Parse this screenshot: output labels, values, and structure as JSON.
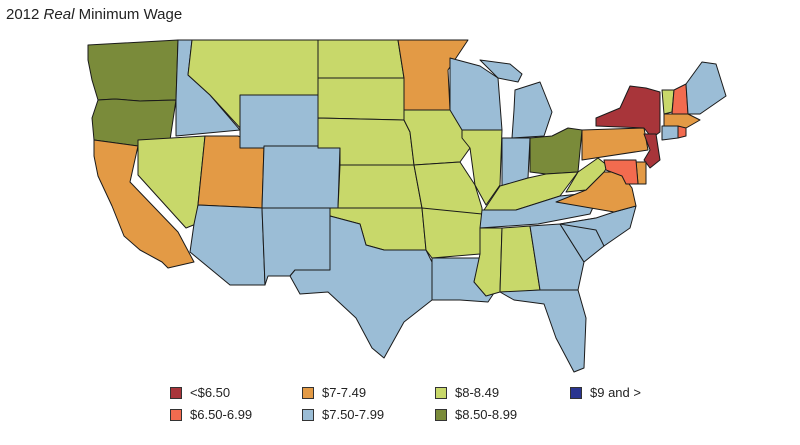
{
  "title": {
    "year": "2012",
    "italic": "Real",
    "rest": "Minimum Wage"
  },
  "legend": [
    {
      "id": "lt650",
      "label": "<$6.50",
      "color": "#a8353a"
    },
    {
      "id": "r650_699",
      "label": "$6.50-6.99",
      "color": "#f26b4f"
    },
    {
      "id": "r7_749",
      "label": "$7-7.49",
      "color": "#e39a45"
    },
    {
      "id": "r750_799",
      "label": "$7.50-7.99",
      "color": "#9bbdd6"
    },
    {
      "id": "r8_849",
      "label": "$8-8.49",
      "color": "#c8d86a"
    },
    {
      "id": "r850_899",
      "label": "$8.50-8.99",
      "color": "#7a8b3a"
    },
    {
      "id": "gte9",
      "label": "$9 and >",
      "color": "#2a3590"
    }
  ],
  "states": [
    {
      "id": "WA",
      "bin": "r850_899"
    },
    {
      "id": "OR",
      "bin": "r850_899"
    },
    {
      "id": "CA",
      "bin": "r7_749"
    },
    {
      "id": "ID",
      "bin": "r750_799"
    },
    {
      "id": "NV",
      "bin": "r8_849"
    },
    {
      "id": "UT",
      "bin": "r7_749"
    },
    {
      "id": "AZ",
      "bin": "r750_799"
    },
    {
      "id": "MT",
      "bin": "r8_849"
    },
    {
      "id": "WY",
      "bin": "r750_799"
    },
    {
      "id": "CO",
      "bin": "r750_799"
    },
    {
      "id": "NM",
      "bin": "r750_799"
    },
    {
      "id": "ND",
      "bin": "r8_849"
    },
    {
      "id": "SD",
      "bin": "r8_849"
    },
    {
      "id": "NE",
      "bin": "r8_849"
    },
    {
      "id": "KS",
      "bin": "r8_849"
    },
    {
      "id": "OK",
      "bin": "r8_849"
    },
    {
      "id": "TX",
      "bin": "r750_799"
    },
    {
      "id": "MN",
      "bin": "r7_749"
    },
    {
      "id": "IA",
      "bin": "r8_849"
    },
    {
      "id": "MO",
      "bin": "r8_849"
    },
    {
      "id": "AR",
      "bin": "r8_849"
    },
    {
      "id": "LA",
      "bin": "r750_799"
    },
    {
      "id": "WI",
      "bin": "r750_799"
    },
    {
      "id": "IL",
      "bin": "r8_849"
    },
    {
      "id": "MI",
      "bin": "r750_799"
    },
    {
      "id": "IN",
      "bin": "r750_799"
    },
    {
      "id": "OH",
      "bin": "r850_899"
    },
    {
      "id": "KY",
      "bin": "r8_849"
    },
    {
      "id": "TN",
      "bin": "r750_799"
    },
    {
      "id": "MS",
      "bin": "r8_849"
    },
    {
      "id": "AL",
      "bin": "r8_849"
    },
    {
      "id": "GA",
      "bin": "r750_799"
    },
    {
      "id": "FL",
      "bin": "r750_799"
    },
    {
      "id": "SC",
      "bin": "r750_799"
    },
    {
      "id": "NC",
      "bin": "r750_799"
    },
    {
      "id": "VA",
      "bin": "r7_749"
    },
    {
      "id": "WV",
      "bin": "r8_849"
    },
    {
      "id": "PA",
      "bin": "r7_749"
    },
    {
      "id": "NY",
      "bin": "lt650"
    },
    {
      "id": "VT",
      "bin": "r8_849"
    },
    {
      "id": "NH",
      "bin": "r650_699"
    },
    {
      "id": "ME",
      "bin": "r750_799"
    },
    {
      "id": "MA",
      "bin": "r7_749"
    },
    {
      "id": "CT",
      "bin": "r750_799"
    },
    {
      "id": "RI",
      "bin": "r650_699"
    },
    {
      "id": "NJ",
      "bin": "lt650"
    },
    {
      "id": "DE",
      "bin": "r7_749"
    },
    {
      "id": "MD",
      "bin": "r650_699"
    }
  ]
}
